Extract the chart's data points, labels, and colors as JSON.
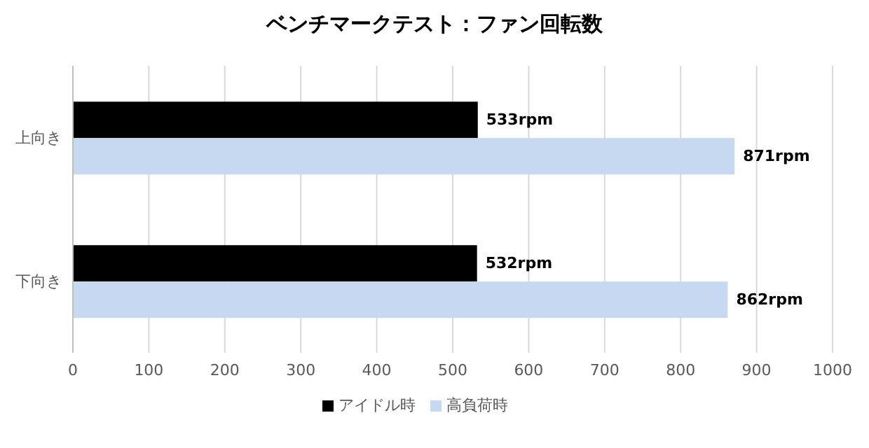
{
  "chart_data": {
    "type": "bar",
    "orientation": "horizontal",
    "title": "ベンチマークテスト：ファン回転数",
    "categories": [
      "上向き",
      "下向き"
    ],
    "series": [
      {
        "name": "アイドル時",
        "color": "#000000",
        "values": [
          533,
          532
        ],
        "value_labels": [
          "533rpm",
          "532rpm"
        ]
      },
      {
        "name": "高負荷時",
        "color": "#c6d9f1",
        "values": [
          871,
          862
        ],
        "value_labels": [
          "871rpm",
          "862rpm"
        ]
      }
    ],
    "xlim": [
      0,
      1000
    ],
    "xticks": [
      0,
      100,
      200,
      300,
      400,
      500,
      600,
      700,
      800,
      900,
      1000
    ],
    "grid": "x",
    "legend": "bottom"
  }
}
